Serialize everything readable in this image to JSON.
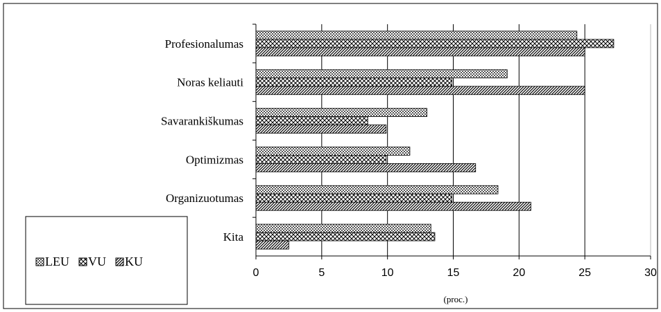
{
  "chart_data": {
    "type": "hbar",
    "categories": [
      "Profesionalumas",
      "Noras keliauti",
      "Savarankiškumas",
      "Optimizmas",
      "Organizuotumas",
      "Kita"
    ],
    "series": [
      {
        "name": "LEU",
        "values": [
          24.4,
          19.1,
          13.0,
          11.7,
          18.4,
          13.3
        ]
      },
      {
        "name": "VU",
        "values": [
          27.2,
          14.9,
          8.5,
          9.9,
          14.9,
          13.6
        ]
      },
      {
        "name": "KU",
        "values": [
          25.0,
          25.0,
          9.9,
          16.7,
          20.9,
          2.5
        ]
      }
    ],
    "xlabel": "(proc.)",
    "xlim": [
      0,
      30
    ],
    "xticks": [
      0,
      5,
      10,
      15,
      20,
      25,
      30
    ],
    "grid": true
  }
}
